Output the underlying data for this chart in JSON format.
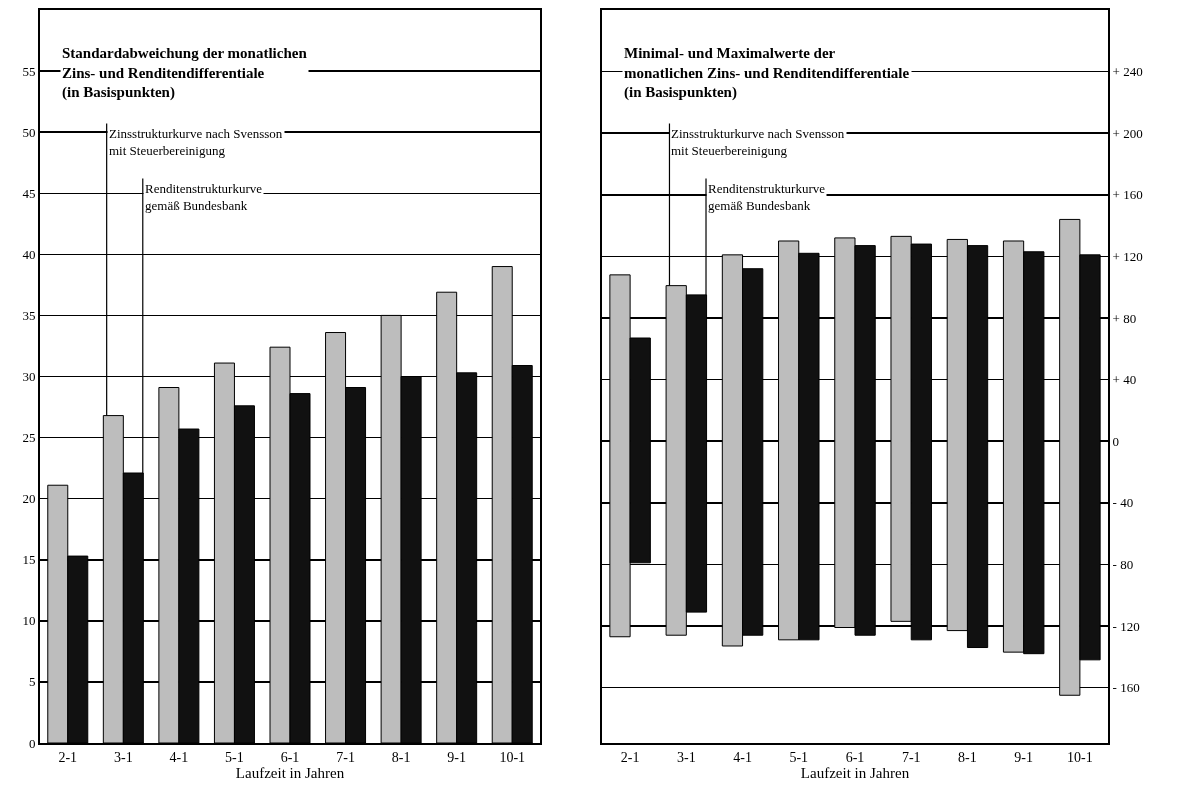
{
  "chart_data": [
    {
      "type": "bar",
      "title": "Standardabweichung der monatlichen\nZins- und Renditendifferentiale\n(in Basispunkten)",
      "xlabel": "Laufzeit in Jahren",
      "categories": [
        "2-1",
        "3-1",
        "4-1",
        "5-1",
        "6-1",
        "7-1",
        "8-1",
        "9-1",
        "10-1"
      ],
      "series": [
        {
          "name": "Zinsstrukturkurve nach Svensson\nmit Steuerbereinigung",
          "color": "#bdbdbd",
          "values": [
            21.1,
            26.8,
            29.1,
            31.1,
            32.4,
            33.6,
            35.0,
            36.9,
            39.0
          ]
        },
        {
          "name": "Renditenstrukturkurve\ngemäß Bundesbank",
          "color": "#111111",
          "values": [
            15.3,
            22.1,
            25.7,
            27.6,
            28.6,
            29.1,
            30.0,
            30.3,
            30.9
          ]
        }
      ],
      "ylim": [
        0,
        60
      ],
      "yticks": [
        0,
        5,
        10,
        15,
        20,
        25,
        30,
        35,
        40,
        45,
        50,
        55
      ],
      "grid": "y"
    },
    {
      "type": "bar",
      "title": "Minimal- und Maximalwerte der\nmonatlichen Zins- und Renditendifferentiale\n(in Basispunkten)",
      "xlabel": "Laufzeit in Jahren",
      "categories": [
        "2-1",
        "3-1",
        "4-1",
        "5-1",
        "6-1",
        "7-1",
        "8-1",
        "9-1",
        "10-1"
      ],
      "series": [
        {
          "name": "Zinsstrukturkurve nach Svensson\nmit Steuerbereinigung",
          "color": "#bdbdbd",
          "axis": "y2",
          "base": [
            -127,
            -126,
            -133,
            -129,
            -121,
            -117,
            -123,
            -137,
            -165
          ],
          "values": [
            235,
            227,
            254,
            259,
            253,
            250,
            254,
            267,
            309
          ]
        },
        {
          "name": "Renditenstrukturkurve\ngemäß Bundesbank",
          "color": "#111111",
          "axis": "y2",
          "base": [
            -79,
            -111,
            -126,
            -129,
            -126,
            -129,
            -134,
            -138,
            -142
          ],
          "values": [
            146,
            206,
            238,
            251,
            253,
            257,
            261,
            261,
            263
          ]
        }
      ],
      "y2lim": [
        -196,
        280
      ],
      "y2ticks": [
        {
          "value": -160,
          "label": "- 160"
        },
        {
          "value": -120,
          "label": "- 120"
        },
        {
          "value": -80,
          "label": "- 80"
        },
        {
          "value": -40,
          "label": "- 40"
        },
        0,
        {
          "value": 40,
          "label": "+ 40"
        },
        {
          "value": 80,
          "label": "+ 80"
        },
        {
          "value": 120,
          "label": "+ 120"
        },
        {
          "value": 160,
          "label": "+ 160"
        },
        {
          "value": 200,
          "label": "+ 200"
        },
        {
          "value": 240,
          "label": "+ 240"
        }
      ],
      "grid": "y"
    }
  ]
}
